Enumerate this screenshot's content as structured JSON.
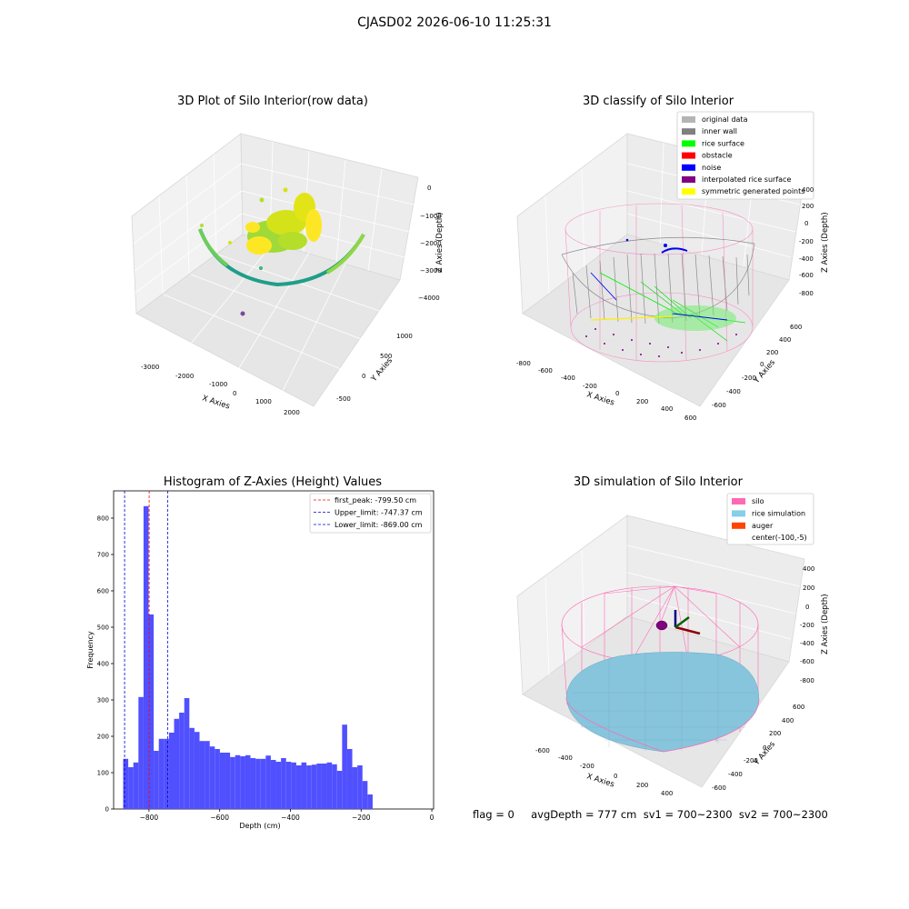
{
  "suptitle": "CJASD02 2026-06-10 11:25:31",
  "footer": "flag = 0     avgDepth = 777 cm  sv1 = 700~2300  sv2 = 700~2300",
  "colors": {
    "histogram_bar": "#5050ff",
    "peak_line": "#ff0000",
    "limit_line": "#0000cc",
    "silo": "#ff69b4",
    "rice": "#87cefa"
  },
  "panel1": {
    "title": "3D Plot of Silo Interior(row data)",
    "xlabel": "X Axies",
    "ylabel": "Y Axies",
    "zlabel": "Z Axies (Depth)",
    "xticks": [
      "-3000",
      "-2000",
      "-1000",
      "0",
      "1000",
      "2000"
    ],
    "yticks": [
      "-500",
      "0",
      "500",
      "1000"
    ],
    "zticks": [
      "0",
      "−1000",
      "−2000",
      "−3000",
      "−4000"
    ]
  },
  "panel2": {
    "title": "3D classify of Silo Interior",
    "xlabel": "X Axies",
    "ylabel": "Y Axies",
    "zlabel": "Z Axies (Depth)",
    "xticks": [
      "-800",
      "-600",
      "-400",
      "-200",
      "0",
      "200",
      "400",
      "600"
    ],
    "yticks": [
      "-600",
      "-400",
      "-200",
      "0",
      "200",
      "400",
      "600"
    ],
    "zticks": [
      "400",
      "200",
      "0",
      "-200",
      "-400",
      "-600",
      "-800"
    ],
    "legend": [
      {
        "label": "original data",
        "color": "#b4b4b4"
      },
      {
        "label": "inner wall",
        "color": "#808080"
      },
      {
        "label": "rice surface",
        "color": "#00ff00"
      },
      {
        "label": "obstacle",
        "color": "#ff0000"
      },
      {
        "label": "noise",
        "color": "#0000ff"
      },
      {
        "label": "interpolated rice surface",
        "color": "#800080"
      },
      {
        "label": "symmetric generated points",
        "color": "#ffff00"
      }
    ]
  },
  "panel4": {
    "title": "3D simulation of Silo Interior",
    "xlabel": "X Axies",
    "ylabel": "Y Axies",
    "zlabel": "Z Axies (Depth)",
    "xticks": [
      "-600",
      "-400",
      "-200",
      "0",
      "200",
      "400"
    ],
    "yticks": [
      "-600",
      "-400",
      "-200",
      "0",
      "200",
      "400",
      "600"
    ],
    "zticks": [
      "400",
      "200",
      "0",
      "-200",
      "-400",
      "-600",
      "-800"
    ],
    "legend": [
      {
        "label": "silo",
        "color": "#ff69b4"
      },
      {
        "label": "rice simulation",
        "color": "#87ceeb"
      },
      {
        "label": "auger",
        "color": "#ff4500"
      },
      {
        "label": "center(-100,-5)",
        "color": ""
      }
    ]
  },
  "chart_data": {
    "type": "bar",
    "title": "Histogram of Z-Axies (Height) Values",
    "xlabel": "Depth (cm)",
    "ylabel": "Frequency",
    "xlim": [
      -900,
      5
    ],
    "ylim": [
      0,
      875
    ],
    "xticks": [
      -800,
      -600,
      -400,
      -200,
      0
    ],
    "yticks": [
      0,
      100,
      200,
      300,
      400,
      500,
      600,
      700,
      800
    ],
    "bin_left": -873,
    "bin_width": 14.4,
    "values": [
      138,
      115,
      128,
      308,
      833,
      535,
      160,
      193,
      193,
      210,
      248,
      265,
      305,
      223,
      212,
      187,
      187,
      172,
      165,
      155,
      155,
      143,
      148,
      145,
      148,
      140,
      138,
      138,
      147,
      135,
      130,
      140,
      130,
      128,
      120,
      128,
      120,
      122,
      125,
      125,
      128,
      123,
      105,
      232,
      165,
      115,
      120,
      77,
      40
    ],
    "vlines": [
      {
        "label": "first_peak: -799.50 cm",
        "x": -799.5,
        "color": "#ff0000"
      },
      {
        "label": "Upper_limit: -747.37 cm",
        "x": -747.37,
        "color": "#0000cc"
      },
      {
        "label": "Lower_limit: -869.00 cm",
        "x": -869.0,
        "color": "#0000cc"
      }
    ]
  }
}
